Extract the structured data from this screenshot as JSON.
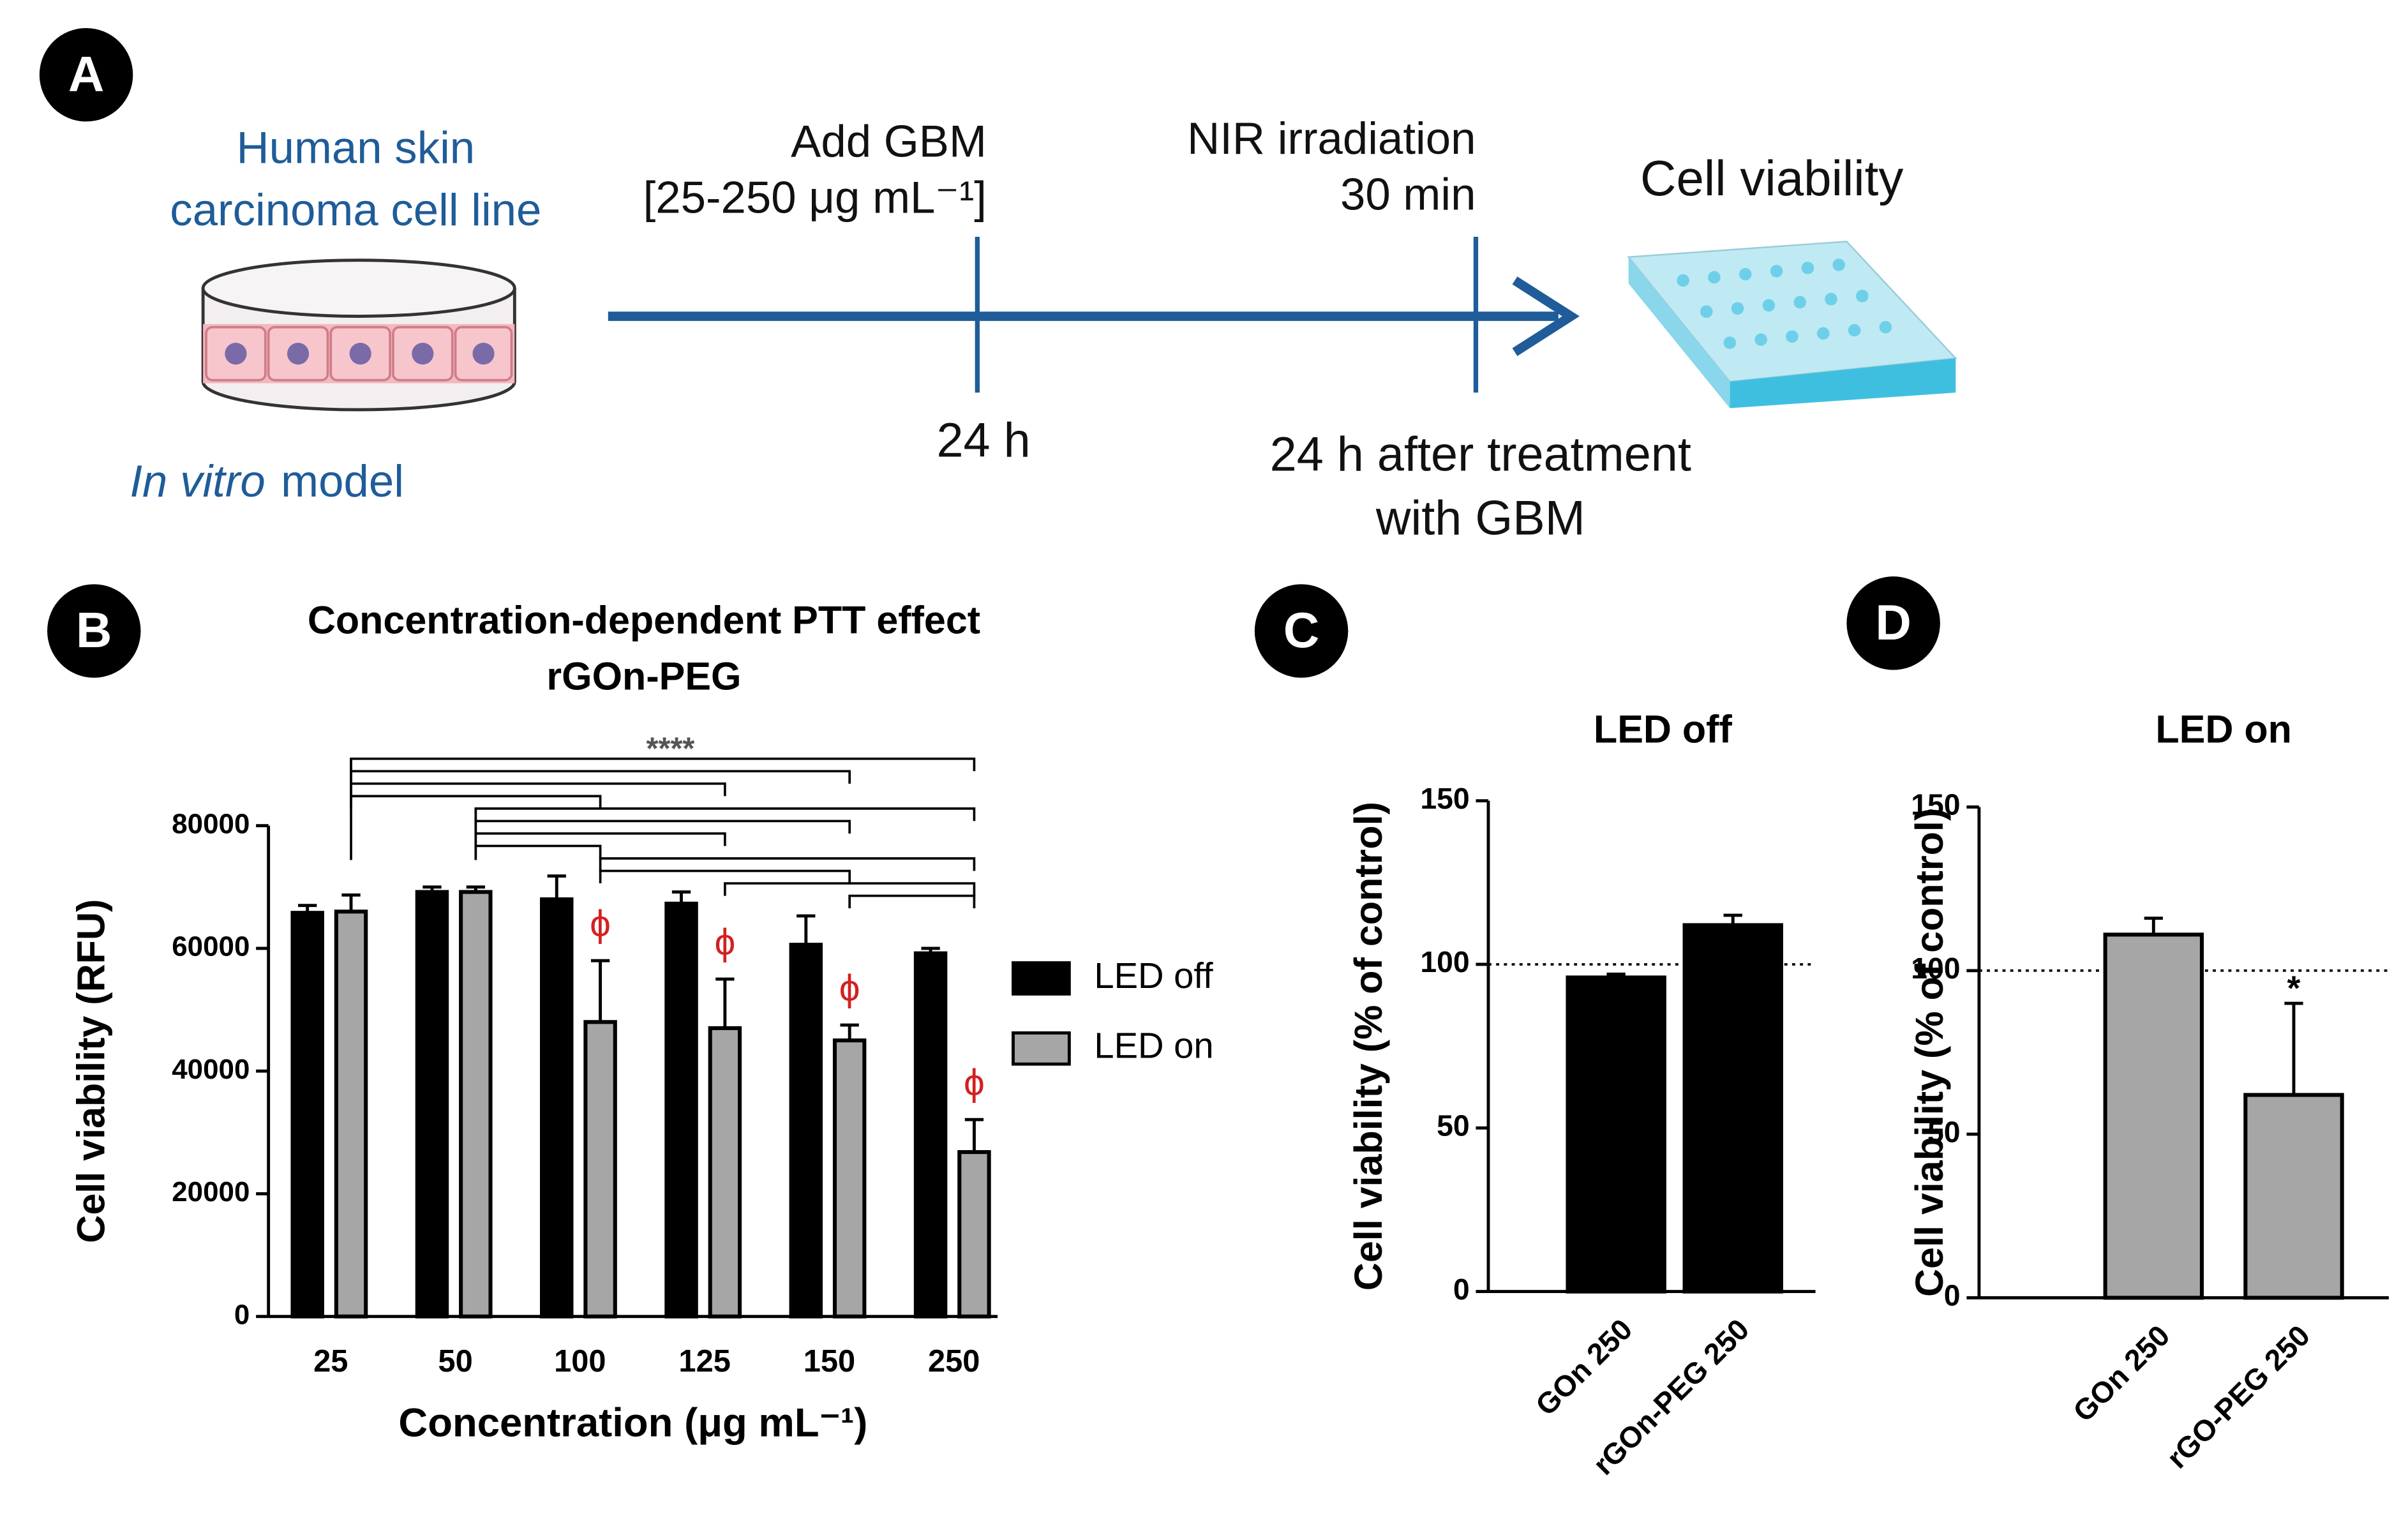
{
  "panel_a": {
    "letter": "A",
    "cell_line": [
      "Human skin",
      "carcinoma cell line"
    ],
    "model_italic": "In vitro",
    "model_text": "model",
    "add_gbm": [
      "Add GBM",
      "[25-250 μg mL⁻¹]"
    ],
    "nir": [
      "NIR irradiation",
      "30 min"
    ],
    "readout": "Cell viability",
    "time_1": "24 h",
    "time_2": [
      "24 h after treatment",
      "with GBM"
    ]
  },
  "letters": [
    "B",
    "C",
    "D"
  ],
  "chart_data": [
    {
      "type": "bar",
      "title": "Concentration-dependent PTT effect",
      "subtitle": "rGOn-PEG",
      "x_label": "Concentration (μg mL⁻¹)",
      "y_label": "Cell viability (RFU)",
      "categories": [
        "25",
        "50",
        "100",
        "125",
        "150",
        "250"
      ],
      "series": [
        {
          "name": "LED off",
          "color": "#000000",
          "values": [
            65800,
            69200,
            68000,
            67300,
            60600,
            59200
          ],
          "errors": [
            1200,
            800,
            3800,
            1900,
            4700,
            800
          ]
        },
        {
          "name": "LED on",
          "color": "#a6a6a6",
          "values": [
            66000,
            69200,
            48000,
            47000,
            45000,
            26800
          ],
          "errors": [
            2700,
            800,
            10000,
            8000,
            2500,
            5300
          ]
        }
      ],
      "ylim": [
        0,
        80000
      ],
      "yticks": [
        0,
        20000,
        40000,
        60000,
        80000
      ],
      "legend": "right",
      "significance": "****",
      "annotations": [
        {
          "text": "ϕ",
          "category": "100"
        },
        {
          "text": "ϕ",
          "category": "125"
        },
        {
          "text": "ϕ",
          "category": "150"
        },
        {
          "text": "ϕ",
          "category": "250"
        }
      ]
    },
    {
      "type": "bar",
      "title": "LED off",
      "y_label": "Cell viability (% of control)",
      "categories": [
        "GOn 250",
        "rGOn-PEG 250"
      ],
      "values": [
        96,
        112
      ],
      "errors": [
        1,
        3
      ],
      "color": "#000000",
      "ylim": [
        0,
        150
      ],
      "yticks": [
        0,
        50,
        100,
        150
      ],
      "reference_line": 100
    },
    {
      "type": "bar",
      "title": "LED on",
      "y_label": "Cell viability (% of control)",
      "categories": [
        "GOn 250",
        "rGO-PEG 250"
      ],
      "values": [
        111,
        62
      ],
      "errors": [
        5,
        28
      ],
      "color": "#a6a6a6",
      "ylim": [
        0,
        150
      ],
      "yticks": [
        0,
        50,
        100,
        150
      ],
      "reference_line": 100,
      "annotations": [
        {
          "text": "*",
          "category": "rGO-PEG 250"
        }
      ]
    }
  ]
}
